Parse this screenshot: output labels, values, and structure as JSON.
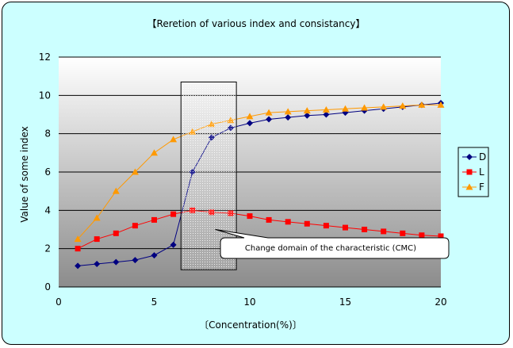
{
  "chart_data": {
    "type": "line",
    "title": "【Reretion of various index and consistancy】",
    "xlabel": "〔Concentration(%)〕",
    "ylabel": "Value of some index",
    "xlim": [
      0,
      20
    ],
    "ylim": [
      0,
      12
    ],
    "x_ticks": [
      0,
      5,
      10,
      15,
      20
    ],
    "y_ticks": [
      0,
      2,
      4,
      6,
      8,
      10,
      12
    ],
    "grid": "horizontal",
    "legend_position": "right",
    "x": [
      1,
      2,
      3,
      4,
      5,
      6,
      7,
      8,
      9,
      10,
      11,
      12,
      13,
      14,
      15,
      16,
      17,
      18,
      19,
      20
    ],
    "series": [
      {
        "name": "D",
        "color": "#000080",
        "marker": "diamond",
        "values": [
          1.1,
          1.2,
          1.3,
          1.4,
          1.65,
          2.2,
          6.0,
          7.8,
          8.3,
          8.55,
          8.75,
          8.85,
          8.95,
          9.0,
          9.1,
          9.2,
          9.3,
          9.4,
          9.5,
          9.6
        ]
      },
      {
        "name": "L",
        "color": "#ff0000",
        "marker": "square",
        "values": [
          2.0,
          2.5,
          2.8,
          3.2,
          3.5,
          3.8,
          4.0,
          3.9,
          3.85,
          3.7,
          3.5,
          3.4,
          3.3,
          3.2,
          3.1,
          3.0,
          2.9,
          2.8,
          2.7,
          2.65
        ]
      },
      {
        "name": "F",
        "color": "#ff9900",
        "marker": "triangle",
        "values": [
          2.5,
          3.6,
          5.0,
          6.0,
          7.0,
          7.7,
          8.1,
          8.5,
          8.7,
          8.9,
          9.1,
          9.15,
          9.2,
          9.25,
          9.3,
          9.35,
          9.4,
          9.45,
          9.5,
          9.5
        ]
      }
    ],
    "highlight_region": {
      "x_from": 6.4,
      "x_to": 9.3,
      "y_from": 0.9,
      "y_to": 10.7
    },
    "annotation": {
      "text": "Change domain of the characteristic (CMC)",
      "points_to_x": 8.2,
      "points_to_y": 3.0
    }
  }
}
